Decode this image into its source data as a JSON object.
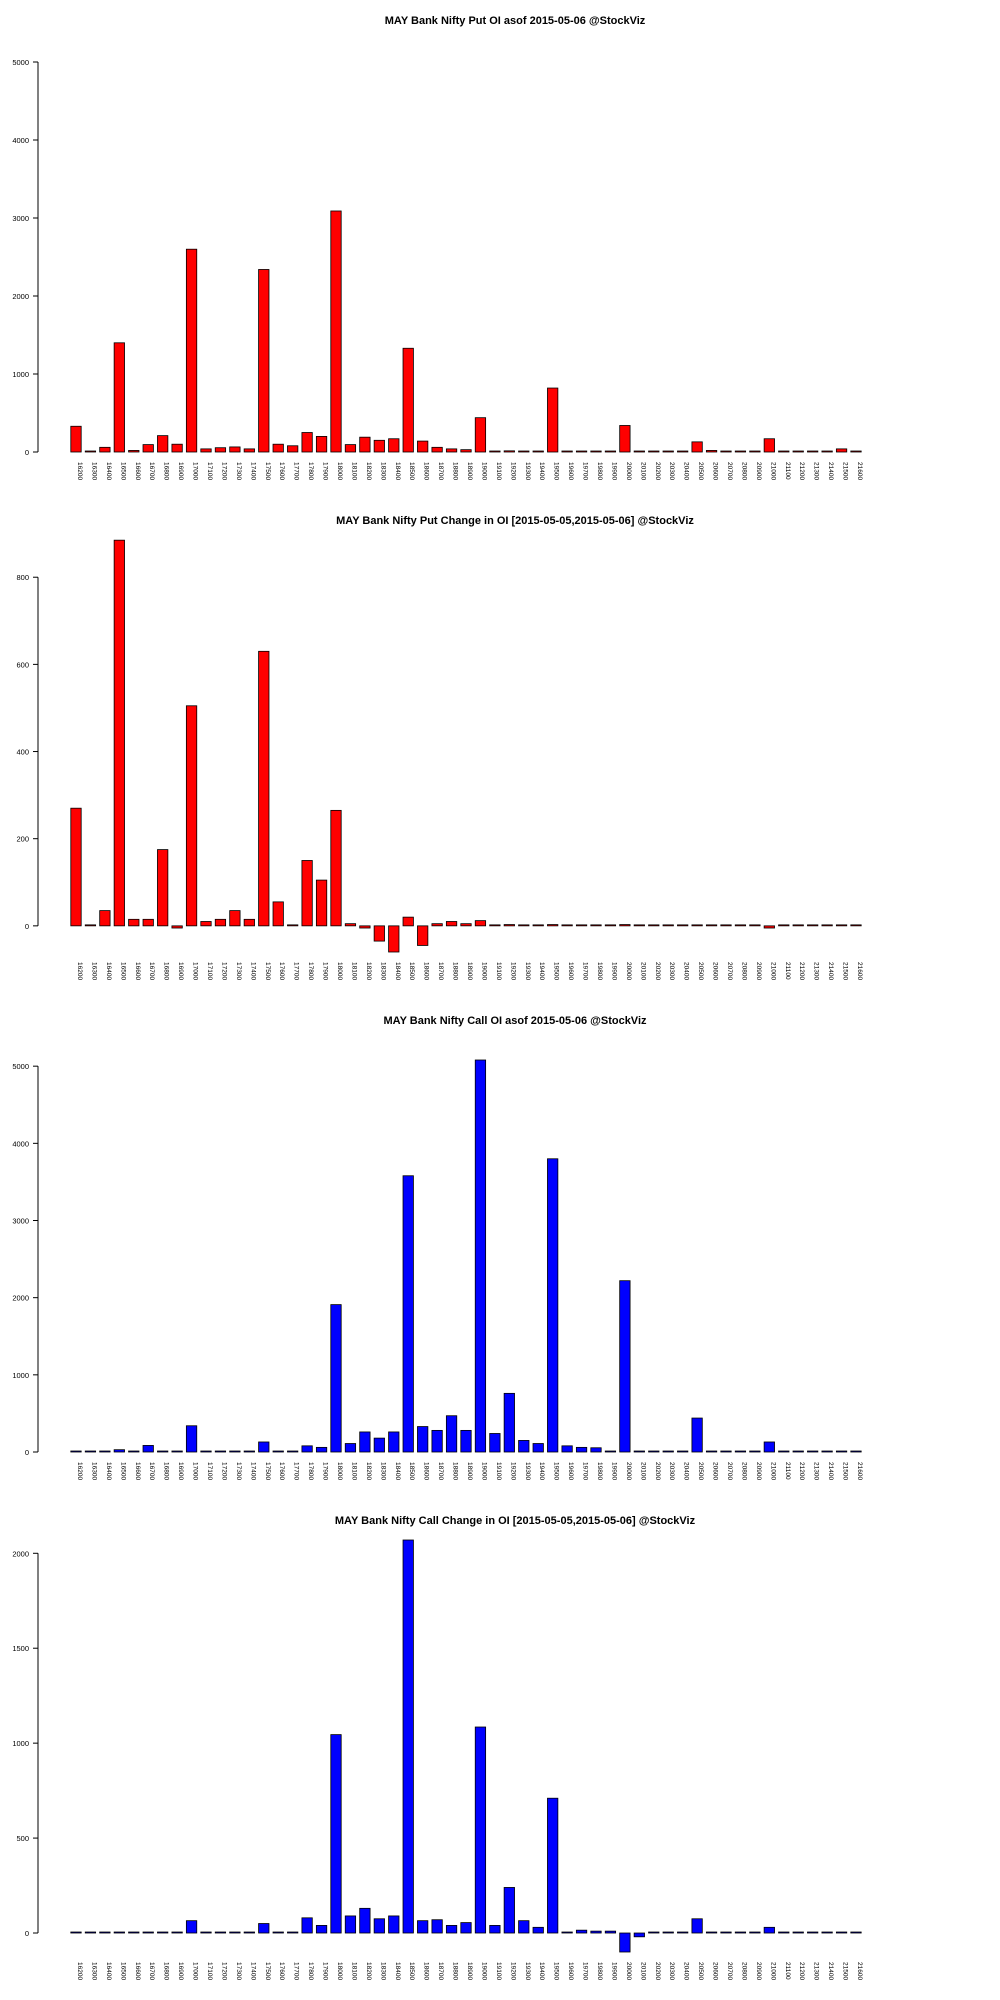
{
  "chart_data": [
    {
      "type": "bar",
      "title": "MAY Bank Nifty Put OI asof 2015-05-06 @StockViz",
      "categories": [
        "16200",
        "16300",
        "16400",
        "16500",
        "16600",
        "16700",
        "16800",
        "16900",
        "17000",
        "17100",
        "17200",
        "17300",
        "17400",
        "17500",
        "17600",
        "17700",
        "17800",
        "17900",
        "18000",
        "18100",
        "18200",
        "18300",
        "18400",
        "18500",
        "18600",
        "18700",
        "18800",
        "18900",
        "19000",
        "19100",
        "19200",
        "19300",
        "19400",
        "19500",
        "19600",
        "19700",
        "19800",
        "19900",
        "20000",
        "20100",
        "20200",
        "20300",
        "20400",
        "20500",
        "20600",
        "20700",
        "20800",
        "20900",
        "21000",
        "21100",
        "21200",
        "21300",
        "21400",
        "21500",
        "21600"
      ],
      "values": [
        330,
        5,
        60,
        1400,
        20,
        95,
        210,
        100,
        2600,
        40,
        55,
        65,
        40,
        2340,
        100,
        80,
        250,
        200,
        3090,
        95,
        190,
        150,
        170,
        1330,
        140,
        60,
        40,
        30,
        440,
        10,
        15,
        5,
        5,
        820,
        5,
        5,
        5,
        5,
        340,
        0,
        0,
        0,
        0,
        130,
        20,
        0,
        0,
        0,
        170,
        0,
        0,
        0,
        0,
        40,
        0
      ],
      "yticks": [
        0,
        1000,
        2000,
        3000,
        4000,
        5000
      ],
      "ylim": [
        0,
        5000
      ],
      "colors": {
        "bar_fill": "#ff0000",
        "bar_stroke": "#000000"
      }
    },
    {
      "type": "bar",
      "title": "MAY Bank Nifty Put Change in OI [2015-05-05,2015-05-06] @StockViz",
      "categories": [
        "16200",
        "16300",
        "16400",
        "16500",
        "16600",
        "16700",
        "16800",
        "16900",
        "17000",
        "17100",
        "17200",
        "17300",
        "17400",
        "17500",
        "17600",
        "17700",
        "17800",
        "17900",
        "18000",
        "18100",
        "18200",
        "18300",
        "18400",
        "18500",
        "18600",
        "18700",
        "18800",
        "18900",
        "19000",
        "19100",
        "19200",
        "19300",
        "19400",
        "19500",
        "19600",
        "19700",
        "19800",
        "19900",
        "20000",
        "20100",
        "20200",
        "20300",
        "20400",
        "20500",
        "20600",
        "20700",
        "20800",
        "20900",
        "21000",
        "21100",
        "21200",
        "21300",
        "21400",
        "21500",
        "21600"
      ],
      "values": [
        270,
        0,
        35,
        885,
        15,
        15,
        175,
        -5,
        505,
        10,
        15,
        35,
        15,
        630,
        55,
        0,
        150,
        105,
        265,
        5,
        -5,
        -35,
        -60,
        20,
        -45,
        5,
        10,
        5,
        12,
        0,
        3,
        0,
        0,
        3,
        0,
        0,
        0,
        0,
        3,
        0,
        0,
        0,
        0,
        0,
        0,
        0,
        0,
        0,
        -5,
        0,
        0,
        0,
        0,
        0,
        0
      ],
      "yticks": [
        0,
        200,
        400,
        600,
        800
      ],
      "ylim": [
        -60,
        890
      ],
      "colors": {
        "bar_fill": "#ff0000",
        "bar_stroke": "#000000"
      }
    },
    {
      "type": "bar",
      "title": "MAY Bank Nifty Call OI asof 2015-05-06 @StockViz",
      "categories": [
        "16200",
        "16300",
        "16400",
        "16500",
        "16600",
        "16700",
        "16800",
        "16900",
        "17000",
        "17100",
        "17200",
        "17300",
        "17400",
        "17500",
        "17600",
        "17700",
        "17800",
        "17900",
        "18000",
        "18100",
        "18200",
        "18300",
        "18400",
        "18500",
        "18600",
        "18700",
        "18800",
        "18900",
        "19000",
        "19100",
        "19200",
        "19300",
        "19400",
        "19500",
        "19600",
        "19700",
        "19800",
        "19900",
        "20000",
        "20100",
        "20200",
        "20300",
        "20400",
        "20500",
        "20600",
        "20700",
        "20800",
        "20900",
        "21000",
        "21100",
        "21200",
        "21300",
        "21400",
        "21500",
        "21600"
      ],
      "values": [
        10,
        0,
        5,
        30,
        5,
        85,
        5,
        5,
        340,
        5,
        5,
        5,
        5,
        130,
        10,
        10,
        80,
        60,
        1910,
        110,
        260,
        180,
        260,
        3580,
        330,
        280,
        470,
        280,
        5080,
        240,
        760,
        150,
        110,
        3800,
        80,
        60,
        55,
        10,
        2220,
        10,
        5,
        5,
        5,
        440,
        5,
        5,
        5,
        5,
        130,
        5,
        5,
        5,
        5,
        5,
        5
      ],
      "yticks": [
        0,
        1000,
        2000,
        3000,
        4000,
        5000
      ],
      "ylim": [
        0,
        5080
      ],
      "colors": {
        "bar_fill": "#0000ff",
        "bar_stroke": "#000000"
      }
    },
    {
      "type": "bar",
      "title": "MAY Bank Nifty Call Change in OI [2015-05-05,2015-05-06] @StockViz",
      "categories": [
        "16200",
        "16300",
        "16400",
        "16500",
        "16600",
        "16700",
        "16800",
        "16900",
        "17000",
        "17100",
        "17200",
        "17300",
        "17400",
        "17500",
        "17600",
        "17700",
        "17800",
        "17900",
        "18000",
        "18100",
        "18200",
        "18300",
        "18400",
        "18500",
        "18600",
        "18700",
        "18800",
        "18900",
        "19000",
        "19100",
        "19200",
        "19300",
        "19400",
        "19500",
        "19600",
        "19700",
        "19800",
        "19900",
        "20000",
        "20100",
        "20200",
        "20300",
        "20400",
        "20500",
        "20600",
        "20700",
        "20800",
        "20900",
        "21000",
        "21100",
        "21200",
        "21300",
        "21400",
        "21500",
        "21600"
      ],
      "values": [
        0,
        0,
        0,
        0,
        0,
        0,
        0,
        0,
        65,
        0,
        0,
        0,
        0,
        50,
        0,
        0,
        80,
        40,
        1045,
        90,
        130,
        75,
        90,
        2070,
        65,
        70,
        40,
        55,
        1085,
        40,
        240,
        65,
        30,
        710,
        0,
        15,
        10,
        10,
        -100,
        -20,
        0,
        0,
        0,
        75,
        0,
        0,
        0,
        0,
        30,
        0,
        0,
        0,
        0,
        0,
        0
      ],
      "yticks": [
        0,
        500,
        1000,
        1500,
        2000
      ],
      "ylim": [
        -100,
        2070
      ],
      "colors": {
        "bar_fill": "#0000ff",
        "bar_stroke": "#000000"
      }
    }
  ]
}
